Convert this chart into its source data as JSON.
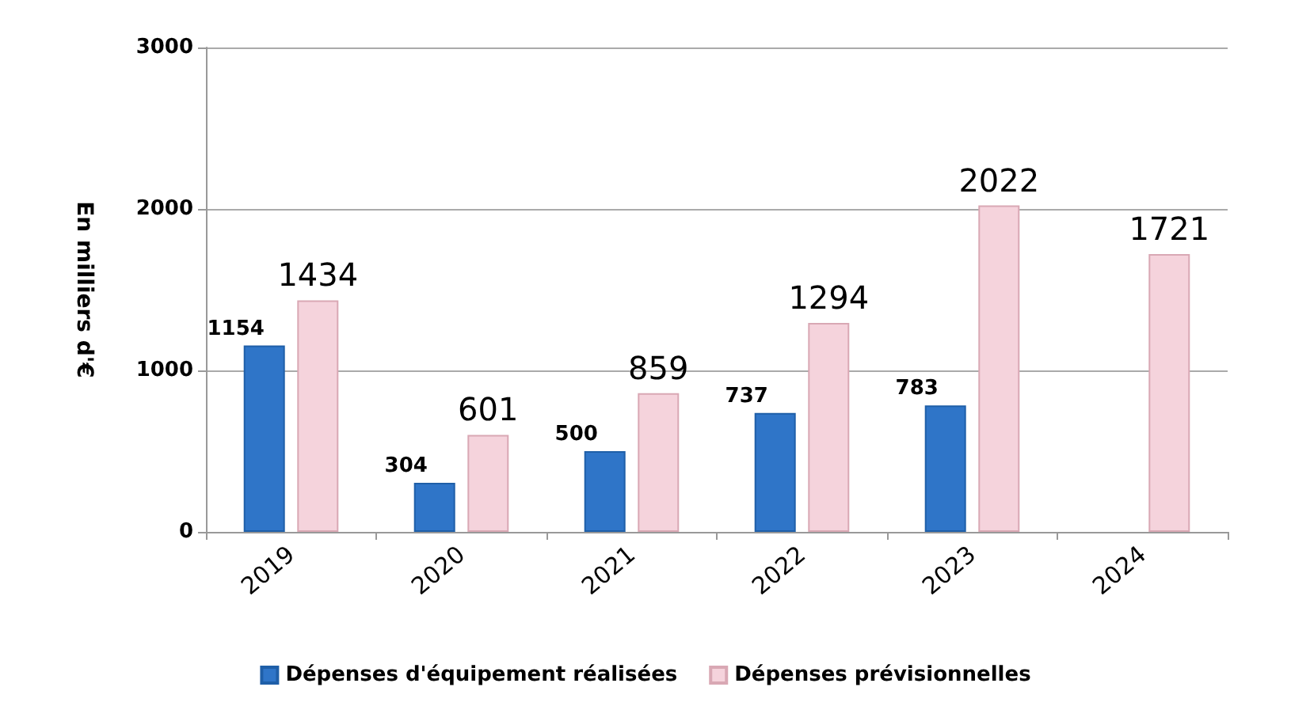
{
  "chart_data": {
    "type": "bar",
    "ylabel": "En milliers d'€",
    "categories": [
      "2019",
      "2020",
      "2021",
      "2022",
      "2023",
      "2024"
    ],
    "series": [
      {
        "name": "Dépenses d'équipement réalisées",
        "color": "#2f75c8",
        "values": [
          1154,
          304,
          500,
          737,
          783,
          null
        ]
      },
      {
        "name": "Dépenses prévisionnelles",
        "color": "#f5d3dc",
        "values": [
          1434,
          601,
          859,
          1294,
          2022,
          1721
        ]
      }
    ],
    "ylim": [
      0,
      3000
    ],
    "yticks": [
      0,
      1000,
      2000,
      3000
    ],
    "grid": "y",
    "legend": "bottom",
    "data_labels": true
  }
}
